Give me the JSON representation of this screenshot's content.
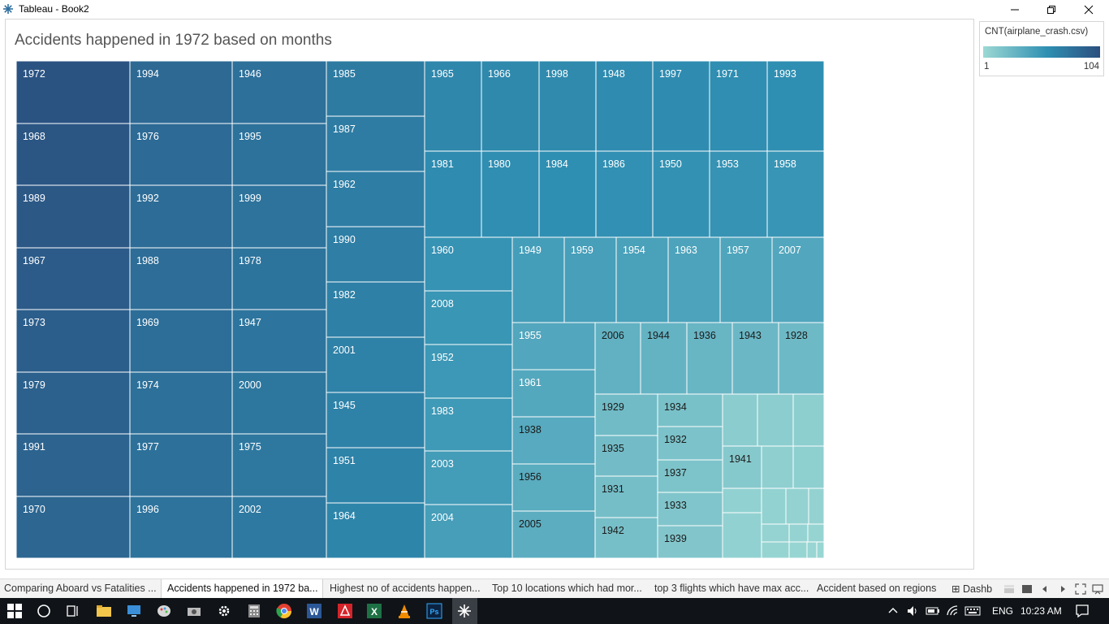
{
  "window": {
    "title": "Tableau - Book2"
  },
  "sheet": {
    "title": "Accidents happened in 1972 based on months"
  },
  "legend": {
    "title": "CNT(airplane_crash.csv)",
    "min": "1",
    "max": "104"
  },
  "tabs": [
    "Comparing Aboard vs Fatalities ...",
    "Accidents happened in 1972 ba...",
    "Highest no of accidents happen...",
    "Top 10 locations which had mor...",
    "top 3 flights which have max acc...",
    "Accident based on regions",
    "Dashb"
  ],
  "active_tab": 1,
  "taskbar": {
    "language": "ENG",
    "time": "10:23 AM"
  },
  "chart_data": {
    "type": "treemap",
    "title": "Accidents happened in 1972 based on months",
    "color_measure": "CNT(airplane_crash.csv)",
    "color_range": [
      1,
      104
    ],
    "colors": {
      "low": "#9cd8d4",
      "mid": "#2f8fb2",
      "high": "#2b4f7f"
    },
    "columns": [
      [
        "1972",
        "1968",
        "1989",
        "1967",
        "1973",
        "1979",
        "1991",
        "1970"
      ],
      [
        "1994",
        "1976",
        "1992",
        "1988",
        "1969",
        "1974",
        "1977",
        "1996"
      ],
      [
        "1946",
        "1995",
        "1999",
        "1978",
        "1947",
        "2000",
        "1975",
        "2002"
      ],
      [
        "1985",
        "1987",
        "1962",
        "1990",
        "1982",
        "2001",
        "1945",
        "1951",
        "1964"
      ]
    ],
    "rows": [
      [
        "1965",
        "1966",
        "1998",
        "1948",
        "1997",
        "1971",
        "1993"
      ],
      [
        "1981",
        "1980",
        "1984",
        "1986",
        "1950",
        "1953",
        "1958"
      ]
    ],
    "col_1960": [
      "1960",
      "2008",
      "1952",
      "1983",
      "2003",
      "2004"
    ],
    "row_1949": [
      "1949",
      "1959",
      "1954",
      "1963",
      "1957",
      "2007"
    ],
    "col_1955": [
      "1955",
      "1961",
      "1938",
      "1956",
      "2005"
    ],
    "row_2006": [
      "2006",
      "1944",
      "1936",
      "1943",
      "1928"
    ],
    "col_1929": [
      "1929",
      "1935",
      "1931",
      "1942"
    ],
    "col_1934": [
      "1934",
      "1932",
      "1937",
      "1933",
      "1939"
    ],
    "extra_labeled": [
      "1941"
    ]
  }
}
